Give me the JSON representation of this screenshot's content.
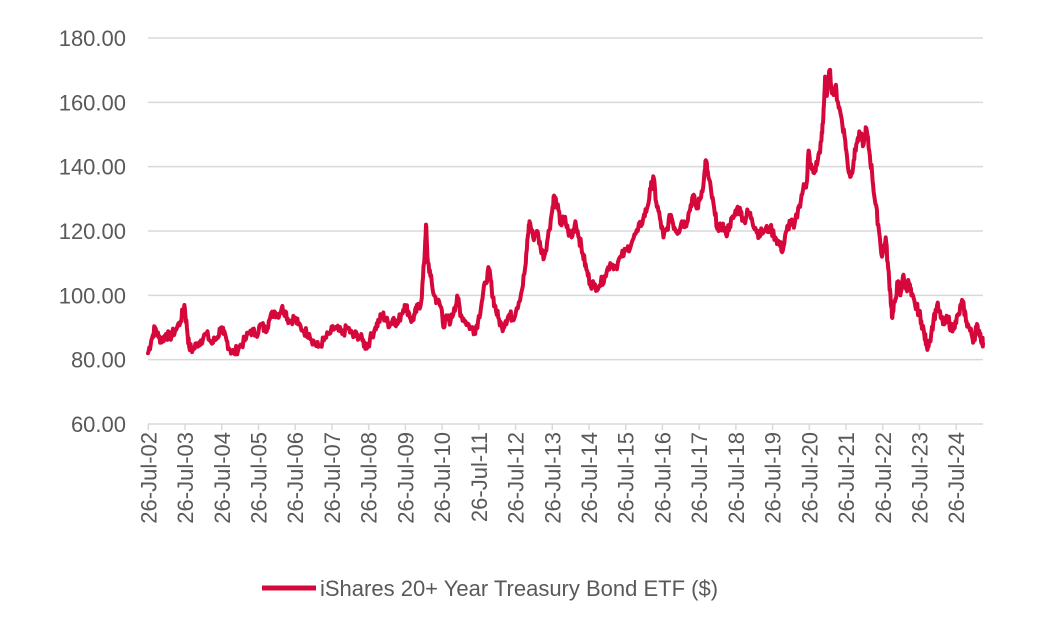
{
  "chart_data": {
    "type": "line",
    "title": "",
    "xlabel": "",
    "ylabel": "",
    "ylim": [
      60,
      180
    ],
    "y_ticks": [
      "60.00",
      "80.00",
      "100.00",
      "120.00",
      "140.00",
      "160.00",
      "180.00"
    ],
    "x_range": [
      2002.56,
      2025.3
    ],
    "x_ticks": [
      "26-Jul-02",
      "26-Jul-03",
      "26-Jul-04",
      "26-Jul-05",
      "26-Jul-06",
      "26-Jul-07",
      "26-Jul-08",
      "26-Jul-09",
      "26-Jul-10",
      "26-Jul-11",
      "26-Jul-12",
      "26-Jul-13",
      "26-Jul-14",
      "26-Jul-15",
      "26-Jul-16",
      "26-Jul-17",
      "26-Jul-18",
      "26-Jul-19",
      "26-Jul-20",
      "26-Jul-21",
      "26-Jul-22",
      "26-Jul-23",
      "26-Jul-24"
    ],
    "grid": true,
    "legend_position": "bottom",
    "series": [
      {
        "name": "iShares 20+ Year Treasury Bond ETF ($)",
        "color": "#d6083b",
        "points": [
          [
            2002.56,
            82
          ],
          [
            2002.65,
            86
          ],
          [
            2002.75,
            90
          ],
          [
            2002.85,
            87
          ],
          [
            2002.95,
            86
          ],
          [
            2003.05,
            88
          ],
          [
            2003.15,
            87
          ],
          [
            2003.3,
            89
          ],
          [
            2003.45,
            92
          ],
          [
            2003.55,
            97
          ],
          [
            2003.62,
            90
          ],
          [
            2003.68,
            84
          ],
          [
            2003.78,
            83
          ],
          [
            2003.9,
            85
          ],
          [
            2004.0,
            86
          ],
          [
            2004.15,
            88
          ],
          [
            2004.3,
            85
          ],
          [
            2004.45,
            87
          ],
          [
            2004.55,
            90
          ],
          [
            2004.62,
            88
          ],
          [
            2004.7,
            86
          ],
          [
            2004.8,
            83
          ],
          [
            2004.9,
            82
          ],
          [
            2005.05,
            84
          ],
          [
            2005.2,
            86
          ],
          [
            2005.35,
            89
          ],
          [
            2005.5,
            88
          ],
          [
            2005.65,
            91
          ],
          [
            2005.75,
            89
          ],
          [
            2005.85,
            92
          ],
          [
            2006.0,
            95
          ],
          [
            2006.1,
            94
          ],
          [
            2006.2,
            96
          ],
          [
            2006.3,
            95
          ],
          [
            2006.4,
            92
          ],
          [
            2006.55,
            93
          ],
          [
            2006.65,
            91
          ],
          [
            2006.8,
            89
          ],
          [
            2006.95,
            88
          ],
          [
            2007.1,
            85
          ],
          [
            2007.2,
            84
          ],
          [
            2007.35,
            86
          ],
          [
            2007.5,
            88
          ],
          [
            2007.65,
            90
          ],
          [
            2007.75,
            89
          ],
          [
            2007.85,
            88
          ],
          [
            2008.0,
            90
          ],
          [
            2008.15,
            87
          ],
          [
            2008.25,
            88
          ],
          [
            2008.4,
            86
          ],
          [
            2008.5,
            84
          ],
          [
            2008.6,
            86
          ],
          [
            2008.75,
            90
          ],
          [
            2008.85,
            92
          ],
          [
            2008.95,
            94
          ],
          [
            2009.05,
            92
          ],
          [
            2009.15,
            91
          ],
          [
            2009.25,
            93
          ],
          [
            2009.35,
            91
          ],
          [
            2009.45,
            94
          ],
          [
            2009.55,
            97
          ],
          [
            2009.65,
            95
          ],
          [
            2009.75,
            92
          ],
          [
            2009.82,
            94
          ],
          [
            2009.9,
            96
          ],
          [
            2010.0,
            98
          ],
          [
            2010.08,
            110
          ],
          [
            2010.13,
            122
          ],
          [
            2010.17,
            112
          ],
          [
            2010.25,
            106
          ],
          [
            2010.35,
            100
          ],
          [
            2010.45,
            98
          ],
          [
            2010.55,
            96
          ],
          [
            2010.62,
            90
          ],
          [
            2010.7,
            93
          ],
          [
            2010.8,
            92
          ],
          [
            2010.9,
            96
          ],
          [
            2011.0,
            99
          ],
          [
            2011.08,
            94
          ],
          [
            2011.2,
            92
          ],
          [
            2011.35,
            90
          ],
          [
            2011.45,
            89
          ],
          [
            2011.55,
            92
          ],
          [
            2011.65,
            98
          ],
          [
            2011.75,
            104
          ],
          [
            2011.85,
            108
          ],
          [
            2011.92,
            102
          ],
          [
            2012.0,
            97
          ],
          [
            2012.1,
            93
          ],
          [
            2012.2,
            90
          ],
          [
            2012.3,
            92
          ],
          [
            2012.4,
            94
          ],
          [
            2012.5,
            93
          ],
          [
            2012.6,
            96
          ],
          [
            2012.75,
            102
          ],
          [
            2012.85,
            110
          ],
          [
            2012.9,
            118
          ],
          [
            2012.95,
            123
          ],
          [
            2013.05,
            118
          ],
          [
            2013.15,
            120
          ],
          [
            2013.25,
            115
          ],
          [
            2013.35,
            112
          ],
          [
            2013.45,
            118
          ],
          [
            2013.55,
            125
          ],
          [
            2013.62,
            131
          ],
          [
            2013.7,
            128
          ],
          [
            2013.8,
            122
          ],
          [
            2013.9,
            124
          ],
          [
            2014.0,
            120
          ],
          [
            2014.1,
            118
          ],
          [
            2014.2,
            123
          ],
          [
            2014.3,
            118
          ],
          [
            2014.4,
            113
          ],
          [
            2014.5,
            108
          ],
          [
            2014.6,
            104
          ],
          [
            2014.7,
            103
          ],
          [
            2014.85,
            103
          ],
          [
            2015.0,
            106
          ],
          [
            2015.15,
            110
          ],
          [
            2015.3,
            109
          ],
          [
            2015.45,
            112
          ],
          [
            2015.6,
            114
          ],
          [
            2015.75,
            117
          ],
          [
            2015.9,
            120
          ],
          [
            2016.05,
            124
          ],
          [
            2016.15,
            127
          ],
          [
            2016.25,
            133
          ],
          [
            2016.32,
            137
          ],
          [
            2016.4,
            129
          ],
          [
            2016.5,
            124
          ],
          [
            2016.6,
            118
          ],
          [
            2016.7,
            121
          ],
          [
            2016.8,
            125
          ],
          [
            2016.9,
            121
          ],
          [
            2017.0,
            120
          ],
          [
            2017.1,
            123
          ],
          [
            2017.2,
            122
          ],
          [
            2017.3,
            126
          ],
          [
            2017.4,
            131
          ],
          [
            2017.5,
            127
          ],
          [
            2017.6,
            130
          ],
          [
            2017.7,
            136
          ],
          [
            2017.75,
            142
          ],
          [
            2017.82,
            137
          ],
          [
            2017.9,
            132
          ],
          [
            2018.0,
            125
          ],
          [
            2018.1,
            120
          ],
          [
            2018.2,
            122
          ],
          [
            2018.3,
            119
          ],
          [
            2018.4,
            122
          ],
          [
            2018.5,
            124
          ],
          [
            2018.6,
            127
          ],
          [
            2018.7,
            126
          ],
          [
            2018.8,
            123
          ],
          [
            2018.9,
            126
          ],
          [
            2019.0,
            124
          ],
          [
            2019.1,
            121
          ],
          [
            2019.2,
            119
          ],
          [
            2019.35,
            120
          ],
          [
            2019.5,
            121
          ],
          [
            2019.65,
            118
          ],
          [
            2019.75,
            116
          ],
          [
            2019.85,
            114
          ],
          [
            2019.95,
            120
          ],
          [
            2020.05,
            123
          ],
          [
            2020.15,
            121
          ],
          [
            2020.3,
            128
          ],
          [
            2020.4,
            133
          ],
          [
            2020.5,
            135
          ],
          [
            2020.55,
            145
          ],
          [
            2020.6,
            140
          ],
          [
            2020.7,
            138
          ],
          [
            2020.8,
            142
          ],
          [
            2020.9,
            148
          ],
          [
            2020.95,
            155
          ],
          [
            2021.0,
            168
          ],
          [
            2021.05,
            162
          ],
          [
            2021.12,
            170
          ],
          [
            2021.2,
            163
          ],
          [
            2021.28,
            165
          ],
          [
            2021.35,
            160
          ],
          [
            2021.45,
            155
          ],
          [
            2021.55,
            148
          ],
          [
            2021.62,
            140
          ],
          [
            2021.7,
            137
          ],
          [
            2021.78,
            142
          ],
          [
            2021.85,
            147
          ],
          [
            2021.95,
            150
          ],
          [
            2022.05,
            147
          ],
          [
            2022.12,
            152
          ],
          [
            2022.2,
            145
          ],
          [
            2022.28,
            138
          ],
          [
            2022.35,
            130
          ],
          [
            2022.45,
            122
          ],
          [
            2022.55,
            112
          ],
          [
            2022.65,
            118
          ],
          [
            2022.72,
            108
          ],
          [
            2022.78,
            100
          ],
          [
            2022.83,
            93
          ],
          [
            2022.9,
            98
          ],
          [
            2022.98,
            104
          ],
          [
            2023.05,
            100
          ],
          [
            2023.12,
            106
          ],
          [
            2023.2,
            102
          ],
          [
            2023.28,
            104
          ],
          [
            2023.35,
            100
          ],
          [
            2023.45,
            97
          ],
          [
            2023.55,
            95
          ],
          [
            2023.62,
            92
          ],
          [
            2023.7,
            88
          ],
          [
            2023.77,
            84
          ],
          [
            2023.85,
            86
          ],
          [
            2023.95,
            92
          ],
          [
            2024.05,
            97
          ],
          [
            2024.15,
            93
          ],
          [
            2024.25,
            91
          ],
          [
            2024.35,
            93
          ],
          [
            2024.45,
            89
          ],
          [
            2024.55,
            92
          ],
          [
            2024.65,
            94
          ],
          [
            2024.72,
            98
          ],
          [
            2024.78,
            96
          ],
          [
            2024.85,
            92
          ],
          [
            2024.95,
            89
          ],
          [
            2025.05,
            86
          ],
          [
            2025.12,
            90
          ],
          [
            2025.2,
            89
          ],
          [
            2025.27,
            86
          ],
          [
            2025.3,
            85
          ]
        ]
      }
    ]
  }
}
